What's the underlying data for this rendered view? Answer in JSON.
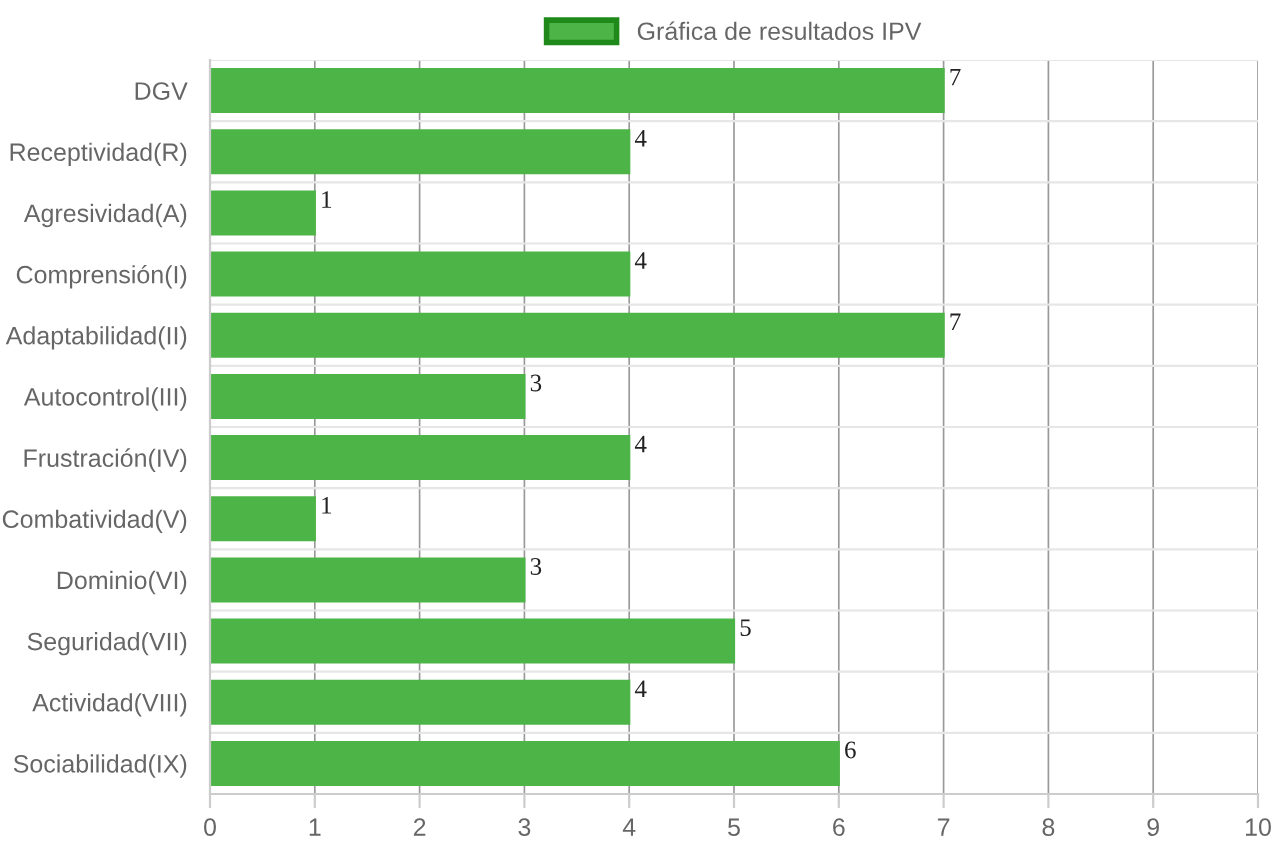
{
  "chart_data": {
    "type": "bar",
    "orientation": "horizontal",
    "categories": [
      "DGV",
      "Receptividad(R)",
      "Agresividad(A)",
      "Comprensión(I)",
      "Adaptabilidad(II)",
      "Autocontrol(III)",
      "Frustración(IV)",
      "Combatividad(V)",
      "Dominio(VI)",
      "Seguridad(VII)",
      "Actividad(VIII)",
      "Sociabilidad(IX)"
    ],
    "series": [
      {
        "name": "Gráfica de resultados IPV",
        "color": "#4db548",
        "values": [
          7,
          4,
          1,
          4,
          7,
          3,
          4,
          1,
          3,
          5,
          4,
          6
        ]
      }
    ],
    "xlim": [
      0,
      10
    ],
    "xticks": [
      0,
      1,
      2,
      3,
      4,
      5,
      6,
      7,
      8,
      9,
      10
    ],
    "grid": true,
    "legend": "top",
    "data_labels": true
  }
}
